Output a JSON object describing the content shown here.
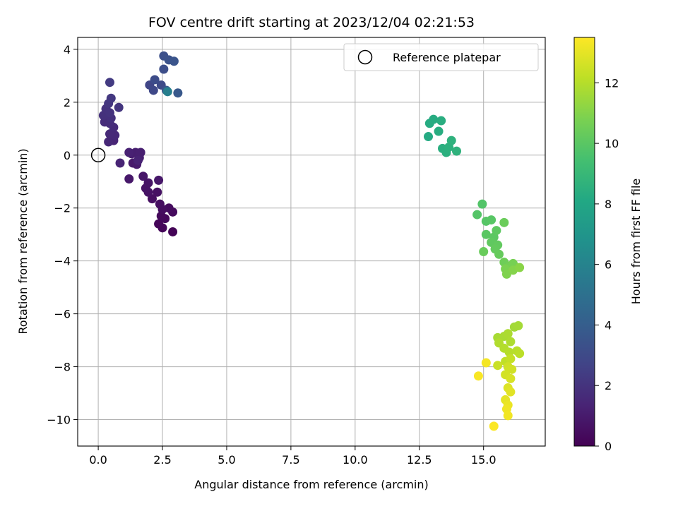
{
  "chart_data": {
    "type": "scatter",
    "title": "FOV centre drift starting at 2023/12/04 02:21:53",
    "xlabel": "Angular distance from reference (arcmin)",
    "ylabel": "Rotation from reference (arcmin)",
    "xlim": [
      -0.8,
      17.4
    ],
    "ylim": [
      -11.0,
      4.45
    ],
    "xticks": [
      0.0,
      2.5,
      5.0,
      7.5,
      10.0,
      12.5,
      15.0
    ],
    "xtick_labels": [
      "0.0",
      "2.5",
      "5.0",
      "7.5",
      "10.0",
      "12.5",
      "15.0"
    ],
    "yticks": [
      -10,
      -8,
      -6,
      -4,
      -2,
      0,
      2,
      4
    ],
    "ytick_labels": [
      "−10",
      "−8",
      "−6",
      "−4",
      "−2",
      "0",
      "2",
      "4"
    ],
    "grid": true,
    "legend": {
      "location": "top-right",
      "entries": [
        "Reference platepar"
      ]
    },
    "reference_point": {
      "x": 0.0,
      "y": 0.0
    },
    "colorbar": {
      "label": "Hours from first FF file",
      "colormap": "viridis",
      "range": [
        0,
        13.5
      ],
      "ticks": [
        0,
        2,
        4,
        6,
        8,
        10,
        12
      ],
      "tick_labels": [
        "0",
        "2",
        "4",
        "6",
        "8",
        "10",
        "12"
      ]
    },
    "points": [
      [
        2.9,
        -2.9,
        0.1
      ],
      [
        2.5,
        -2.75,
        0.15
      ],
      [
        2.35,
        -2.6,
        0.2
      ],
      [
        2.6,
        -2.4,
        0.25
      ],
      [
        2.45,
        -2.3,
        0.3
      ],
      [
        2.9,
        -2.15,
        0.35
      ],
      [
        2.75,
        -2.0,
        0.4
      ],
      [
        2.5,
        -2.05,
        0.45
      ],
      [
        2.4,
        -1.85,
        0.5
      ],
      [
        2.1,
        -1.65,
        0.55
      ],
      [
        2.3,
        -1.4,
        0.6
      ],
      [
        1.95,
        -1.4,
        0.65
      ],
      [
        1.85,
        -1.25,
        0.7
      ],
      [
        1.95,
        -1.05,
        0.75
      ],
      [
        1.75,
        -0.8,
        0.8
      ],
      [
        2.35,
        -0.95,
        0.85
      ],
      [
        1.2,
        -0.9,
        0.9
      ],
      [
        1.35,
        -0.3,
        0.95
      ],
      [
        1.5,
        -0.35,
        1.0
      ],
      [
        1.6,
        -0.1,
        1.05
      ],
      [
        1.3,
        0.05,
        1.1
      ],
      [
        1.45,
        0.1,
        1.15
      ],
      [
        1.65,
        0.1,
        1.2
      ],
      [
        1.2,
        0.1,
        1.25
      ],
      [
        1.55,
        -0.2,
        1.3
      ],
      [
        0.85,
        -0.3,
        1.35
      ],
      [
        0.6,
        0.55,
        1.4
      ],
      [
        0.5,
        0.7,
        1.45
      ],
      [
        0.4,
        0.5,
        1.5
      ],
      [
        0.65,
        0.75,
        1.55
      ],
      [
        0.45,
        0.8,
        1.6
      ],
      [
        0.6,
        1.05,
        1.65
      ],
      [
        0.25,
        1.25,
        1.7
      ],
      [
        0.45,
        1.2,
        1.75
      ],
      [
        0.3,
        1.55,
        1.8
      ],
      [
        0.5,
        1.4,
        1.85
      ],
      [
        0.2,
        1.5,
        1.9
      ],
      [
        0.3,
        1.75,
        1.95
      ],
      [
        0.45,
        1.6,
        2.0
      ],
      [
        0.8,
        1.8,
        2.05
      ],
      [
        0.4,
        1.95,
        2.1
      ],
      [
        0.5,
        2.15,
        2.2
      ],
      [
        0.45,
        2.75,
        2.3
      ],
      [
        2.0,
        2.65,
        2.8
      ],
      [
        2.15,
        2.45,
        2.9
      ],
      [
        2.45,
        2.65,
        3.0
      ],
      [
        2.2,
        2.85,
        3.1
      ],
      [
        2.55,
        3.25,
        3.2
      ],
      [
        2.55,
        3.75,
        3.3
      ],
      [
        2.75,
        3.6,
        3.4
      ],
      [
        2.95,
        3.55,
        3.5
      ],
      [
        2.65,
        2.45,
        3.6
      ],
      [
        3.1,
        2.35,
        3.7
      ],
      [
        2.7,
        2.4,
        5.8
      ],
      [
        12.85,
        0.7,
        8.2
      ],
      [
        12.9,
        1.2,
        8.25
      ],
      [
        13.05,
        1.35,
        8.3
      ],
      [
        13.25,
        0.9,
        8.35
      ],
      [
        13.35,
        1.3,
        8.4
      ],
      [
        13.4,
        0.25,
        8.45
      ],
      [
        13.55,
        0.1,
        8.5
      ],
      [
        13.65,
        0.3,
        8.55
      ],
      [
        13.75,
        0.55,
        8.6
      ],
      [
        13.95,
        0.15,
        8.65
      ],
      [
        14.95,
        -1.85,
        9.8
      ],
      [
        14.75,
        -2.25,
        9.85
      ],
      [
        15.1,
        -2.5,
        9.9
      ],
      [
        15.3,
        -2.45,
        9.95
      ],
      [
        15.1,
        -3.0,
        10.0
      ],
      [
        15.4,
        -3.1,
        10.05
      ],
      [
        15.5,
        -2.85,
        10.1
      ],
      [
        15.3,
        -3.3,
        10.15
      ],
      [
        15.55,
        -3.4,
        10.2
      ],
      [
        15.45,
        -3.55,
        10.25
      ],
      [
        15.6,
        -3.75,
        10.3
      ],
      [
        15.0,
        -3.65,
        10.35
      ],
      [
        15.8,
        -2.55,
        10.4
      ],
      [
        15.8,
        -4.05,
        10.5
      ],
      [
        16.0,
        -4.2,
        10.6
      ],
      [
        16.15,
        -4.1,
        10.7
      ],
      [
        15.85,
        -4.3,
        10.8
      ],
      [
        15.9,
        -4.5,
        10.9
      ],
      [
        16.15,
        -4.35,
        11.0
      ],
      [
        16.4,
        -4.25,
        11.1
      ],
      [
        16.2,
        -6.5,
        11.6
      ],
      [
        16.35,
        -6.45,
        11.65
      ],
      [
        15.55,
        -6.9,
        11.7
      ],
      [
        15.8,
        -6.85,
        11.75
      ],
      [
        15.95,
        -6.75,
        11.8
      ],
      [
        16.05,
        -7.05,
        11.85
      ],
      [
        15.6,
        -7.1,
        11.9
      ],
      [
        15.8,
        -7.3,
        11.95
      ],
      [
        16.0,
        -7.45,
        12.0
      ],
      [
        16.3,
        -7.4,
        12.05
      ],
      [
        16.4,
        -7.5,
        12.1
      ],
      [
        15.85,
        -7.8,
        12.2
      ],
      [
        16.05,
        -7.7,
        12.3
      ],
      [
        15.55,
        -7.95,
        12.4
      ],
      [
        15.95,
        -8.0,
        12.5
      ],
      [
        16.1,
        -8.1,
        12.55
      ],
      [
        15.85,
        -8.3,
        12.6
      ],
      [
        16.05,
        -8.45,
        12.7
      ],
      [
        15.95,
        -8.8,
        12.8
      ],
      [
        16.05,
        -8.95,
        12.9
      ],
      [
        15.85,
        -9.25,
        13.0
      ],
      [
        15.95,
        -9.45,
        13.1
      ],
      [
        15.9,
        -9.6,
        13.2
      ],
      [
        15.95,
        -9.85,
        13.25
      ],
      [
        15.1,
        -7.85,
        13.3
      ],
      [
        14.8,
        -8.35,
        13.4
      ],
      [
        15.4,
        -10.25,
        13.45
      ]
    ]
  }
}
